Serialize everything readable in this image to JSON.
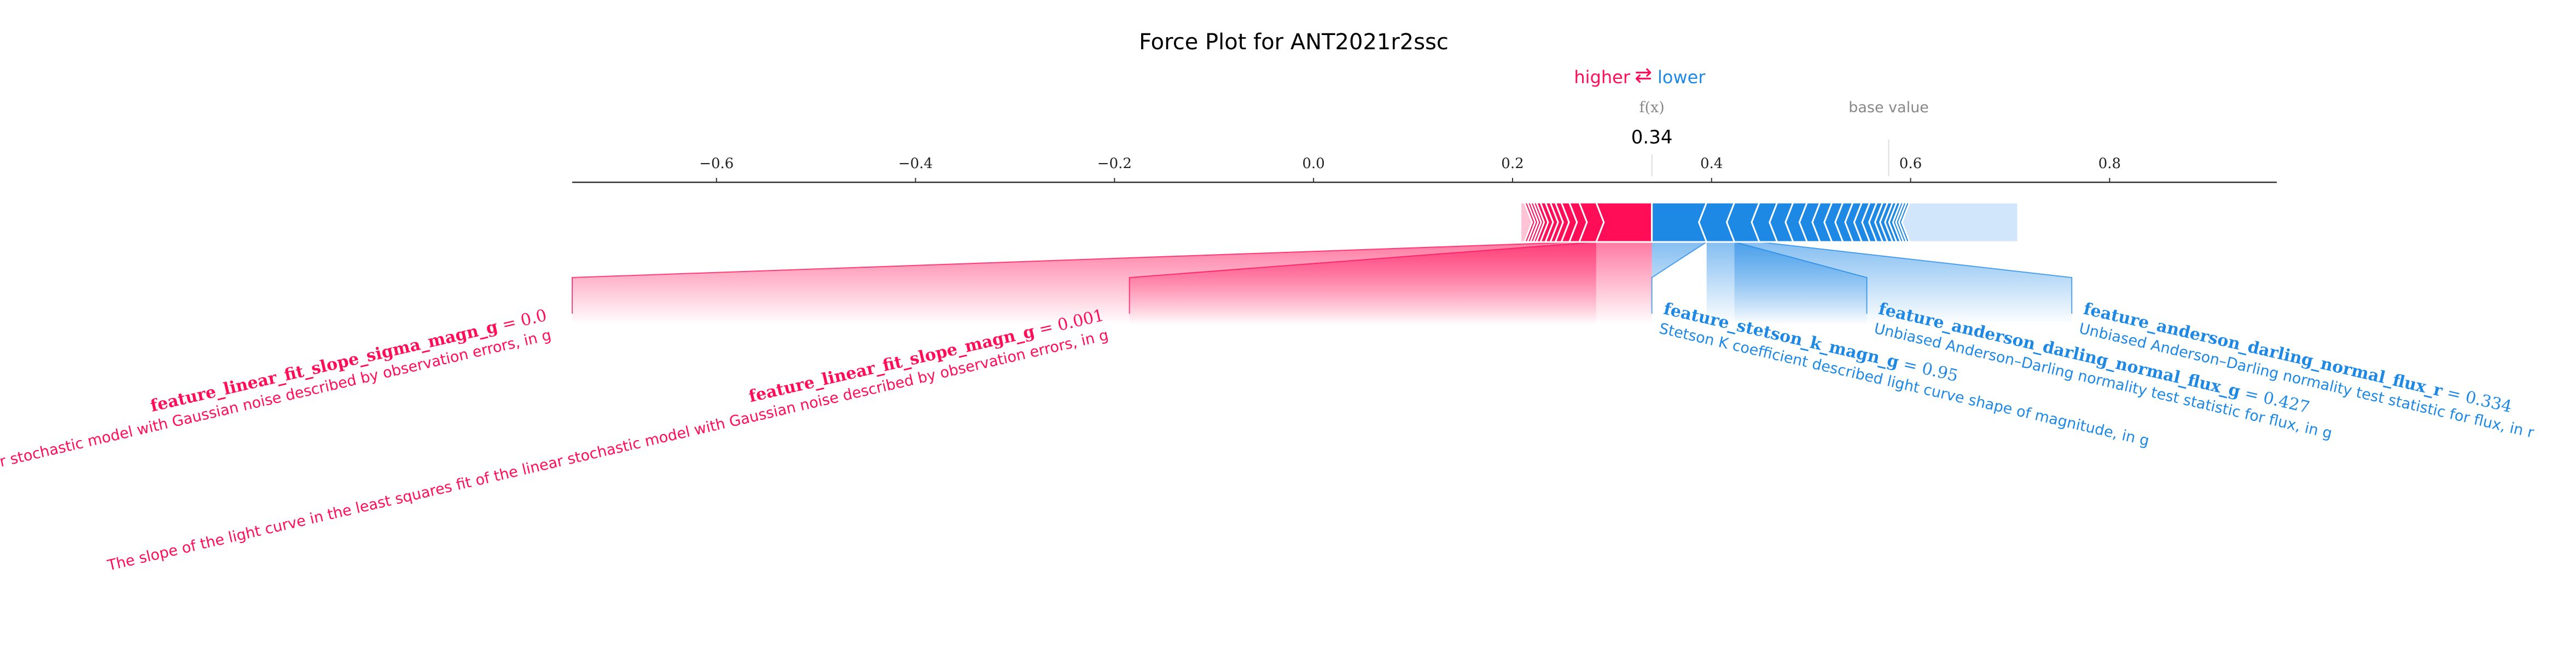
{
  "chart_data": {
    "type": "force",
    "title": "Force Plot for ANT2021r2ssc",
    "legend": {
      "higher_label": "higher",
      "lower_label": "lower",
      "arrows": "⇄",
      "placement": "top-center"
    },
    "output": {
      "label": "f(x)",
      "value": 0.34,
      "value_text": "0.34"
    },
    "base_value": {
      "label": "base value",
      "value": 0.578
    },
    "axis": {
      "xlim": [
        -0.745,
        0.968
      ],
      "ticks": [
        {
          "value": -0.6,
          "label": "−0.6"
        },
        {
          "value": -0.4,
          "label": "−0.4"
        },
        {
          "value": -0.2,
          "label": "−0.2"
        },
        {
          "value": 0.0,
          "label": "0.0"
        },
        {
          "value": 0.2,
          "label": "0.2"
        },
        {
          "value": 0.4,
          "label": "0.4"
        },
        {
          "value": 0.6,
          "label": "0.6"
        },
        {
          "value": 0.8,
          "label": "0.8"
        }
      ]
    },
    "positive_range": [
      0.208,
      0.34
    ],
    "negative_range": [
      0.34,
      0.708
    ],
    "labeled_features": [
      {
        "side": "positive",
        "name": "feature_linear_fit_slope_sigma_magn_g",
        "value_text": "0.0",
        "description": "The err on the slope of the light curve in the least squares fit of the linear stochastic model with Gaussian noise described by observation errors, in g",
        "bar_range": [
          0.267,
          0.284
        ],
        "connector_x": -0.745
      },
      {
        "side": "positive",
        "name": "feature_linear_fit_slope_magn_g",
        "value_text": "0.001",
        "description": "The slope of the light curve in the least squares fit of the linear stochastic model with Gaussian noise described by observation errors, in g",
        "bar_range": [
          0.284,
          0.34
        ],
        "connector_x": -0.185
      },
      {
        "side": "negative",
        "name": "feature_stetson_k_magn_g",
        "value_text": "0.95",
        "description": "Stetson K coefficient described light curve shape of magnitude, in g",
        "bar_range": [
          0.34,
          0.395
        ],
        "connector_x": 0.34
      },
      {
        "side": "negative",
        "name": "feature_anderson_darling_normal_flux_g",
        "value_text": "0.427",
        "description": "Unbiased Anderson–Darling normality test statistic for flux, in g",
        "bar_range": [
          0.395,
          0.423
        ],
        "connector_x": 0.556
      },
      {
        "side": "negative",
        "name": "feature_anderson_darling_normal_flux_r",
        "value_text": "0.334",
        "description": "Unbiased Anderson–Darling normality test statistic for flux, in r",
        "bar_range": [
          0.423,
          0.448
        ],
        "connector_x": 0.762
      }
    ],
    "positive_segment_bounds": [
      0.34,
      0.284,
      0.267,
      0.257,
      0.249,
      0.243,
      0.238,
      0.233,
      0.228,
      0.224,
      0.221,
      0.218,
      0.215,
      0.212,
      0.208
    ],
    "negative_segment_bounds": [
      0.34,
      0.395,
      0.423,
      0.448,
      0.466,
      0.482,
      0.496,
      0.509,
      0.521,
      0.532,
      0.542,
      0.551,
      0.559,
      0.566,
      0.572,
      0.577,
      0.582,
      0.586,
      0.59,
      0.593,
      0.596,
      0.599,
      0.708
    ],
    "colors": {
      "positive": "#ff0d57",
      "positive_light": "#ffc3d5",
      "negative": "#1e88e5",
      "negative_light": "#d1e6fa",
      "axis": "#333333",
      "muted": "#888888"
    }
  }
}
